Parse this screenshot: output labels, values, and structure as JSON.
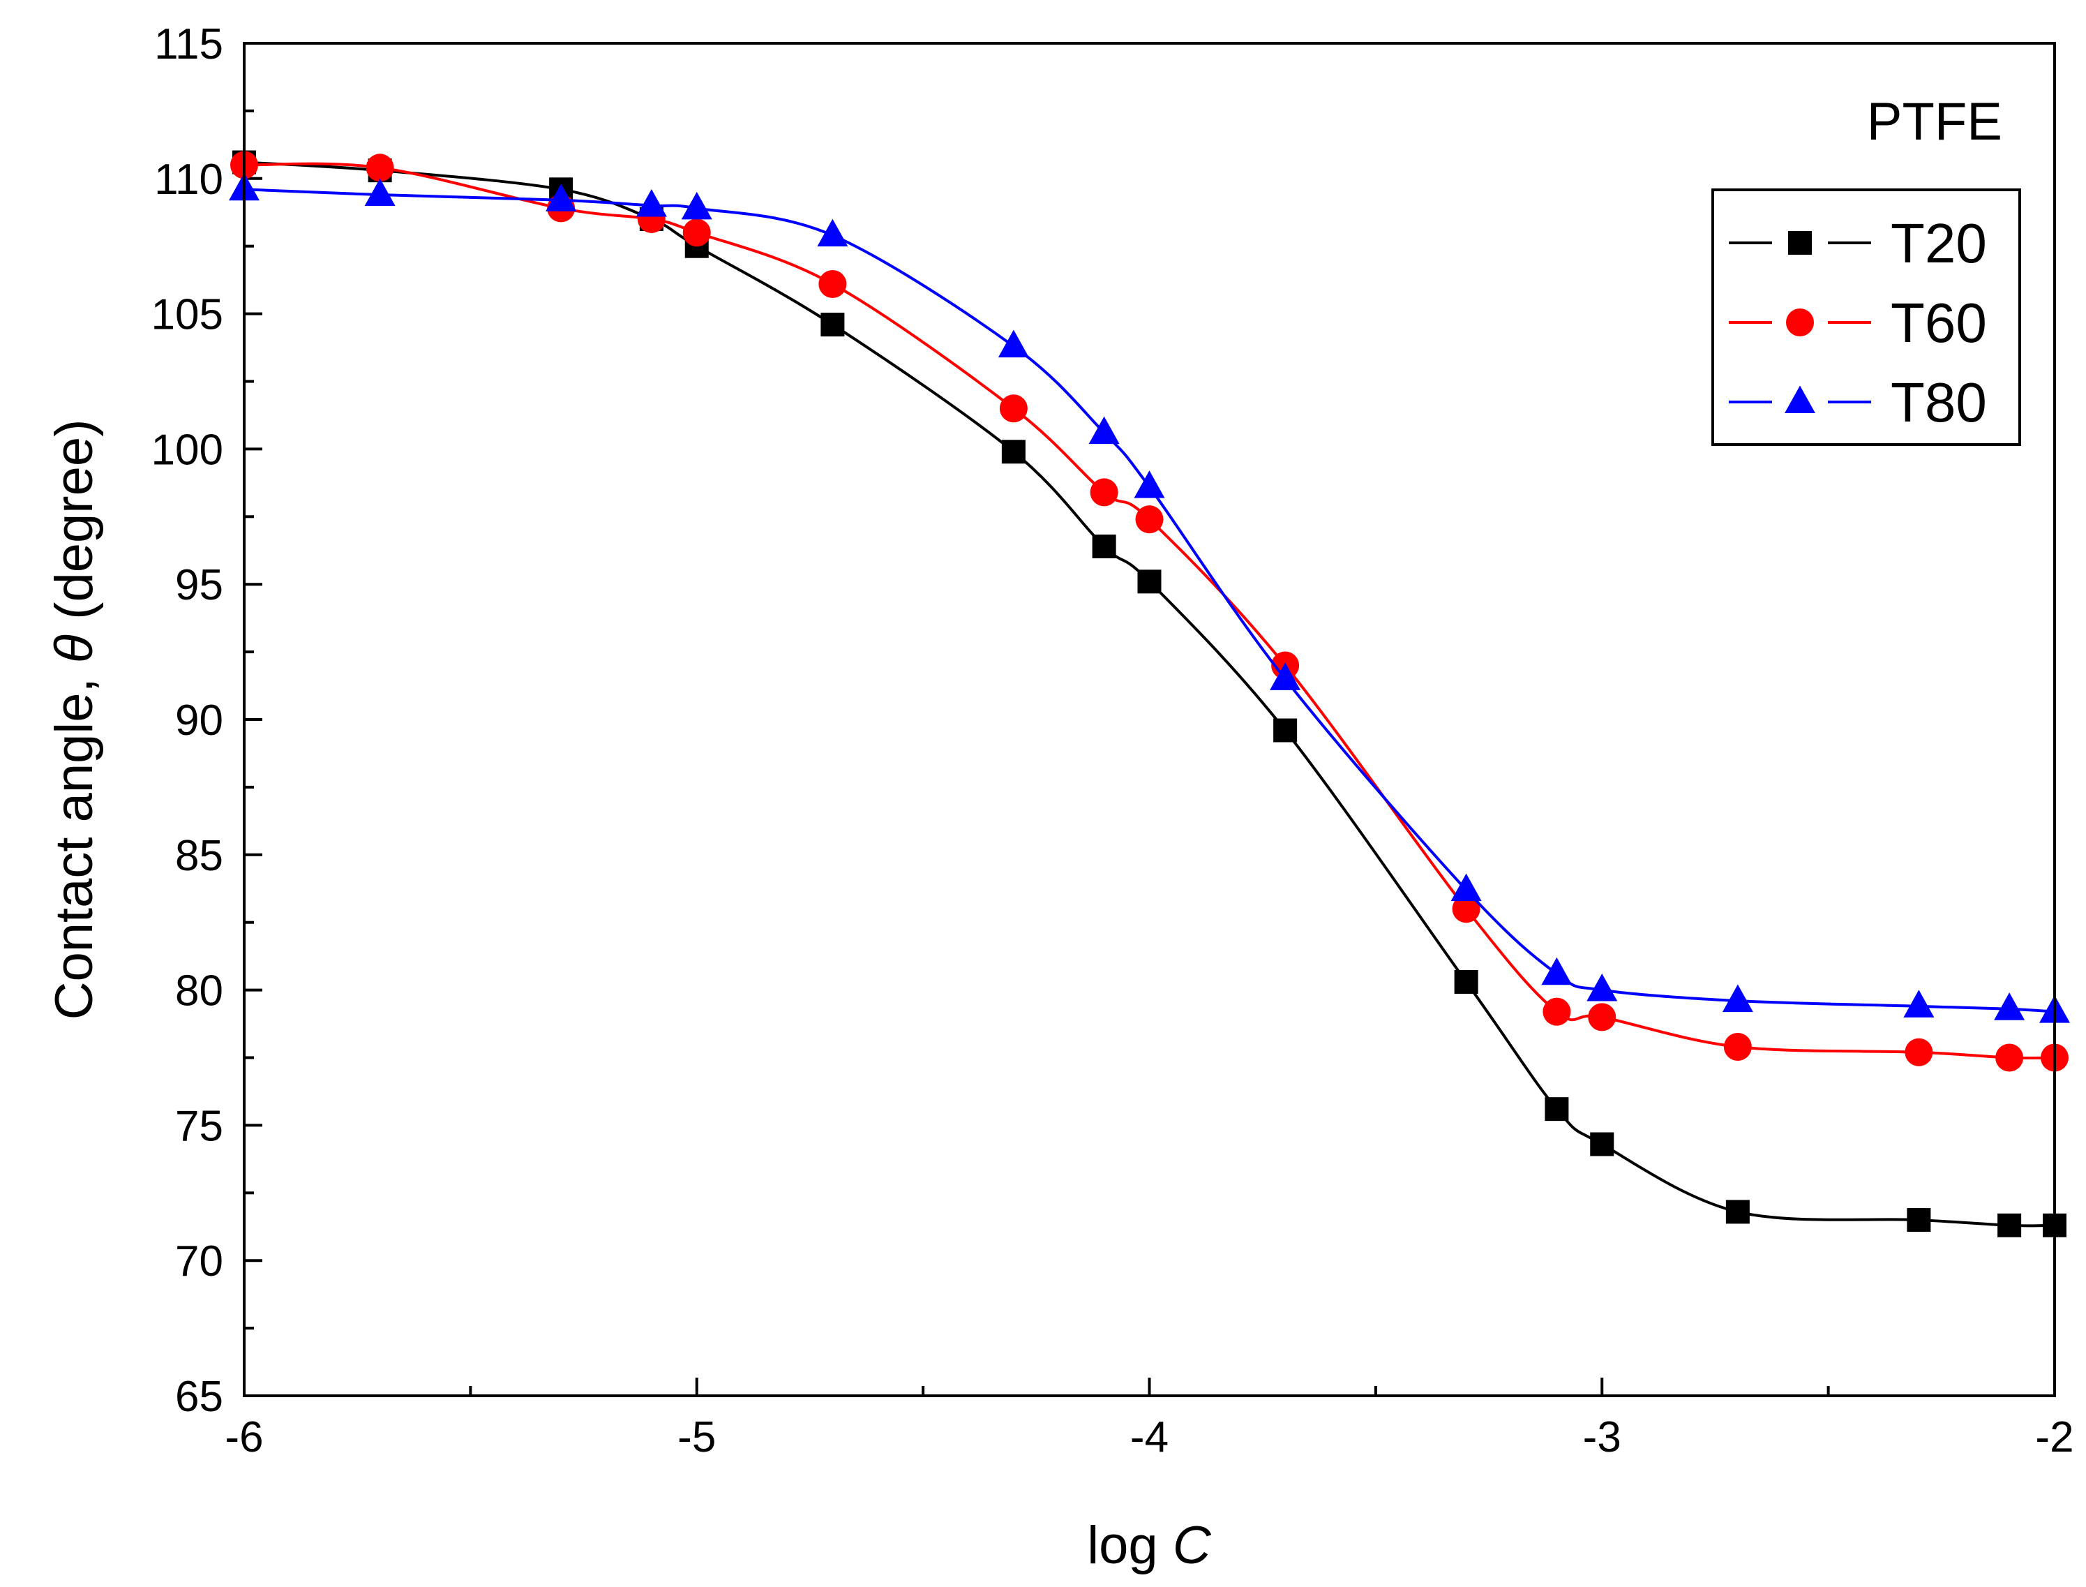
{
  "chart_data": {
    "type": "line",
    "title": "",
    "annotation": "PTFE",
    "xlabel_prefix": "log ",
    "xlabel_var": "C",
    "ylabel_prefix": "Contact angle, ",
    "ylabel_var": "θ",
    "ylabel_suffix": " (degree)",
    "xlim": [
      -6,
      -2
    ],
    "ylim": [
      65,
      115
    ],
    "xticks": [
      -6,
      -5,
      -4,
      -3,
      -2
    ],
    "yticks": [
      65,
      70,
      75,
      80,
      85,
      90,
      95,
      100,
      105,
      110,
      115
    ],
    "x_minor_step": 0.5,
    "y_minor_step": 2.5,
    "legend_position": "top-right",
    "series": [
      {
        "name": "T20",
        "color": "#000000",
        "marker": "square",
        "x": [
          -6,
          -5.7,
          -5.3,
          -5.1,
          -5,
          -4.7,
          -4.3,
          -4.1,
          -4,
          -3.7,
          -3.3,
          -3.1,
          -3,
          -2.7,
          -2.3,
          -2.1,
          -2
        ],
        "y": [
          110.6,
          110.3,
          109.6,
          108.5,
          107.5,
          104.6,
          99.9,
          96.4,
          95.1,
          89.6,
          80.3,
          75.6,
          74.3,
          71.8,
          71.5,
          71.3,
          71.3
        ]
      },
      {
        "name": "T60",
        "color": "#ff0000",
        "marker": "circle",
        "x": [
          -6,
          -5.7,
          -5.3,
          -5.1,
          -5,
          -4.7,
          -4.3,
          -4.1,
          -4,
          -3.7,
          -3.3,
          -3.1,
          -3,
          -2.7,
          -2.3,
          -2.1,
          -2
        ],
        "y": [
          110.5,
          110.4,
          108.9,
          108.5,
          108.0,
          106.1,
          101.5,
          98.4,
          97.4,
          92.0,
          83.0,
          79.2,
          79.0,
          77.9,
          77.7,
          77.5,
          77.5
        ]
      },
      {
        "name": "T80",
        "color": "#0000ff",
        "marker": "triangle",
        "x": [
          -6,
          -5.7,
          -5.3,
          -5.1,
          -5,
          -4.7,
          -4.3,
          -4.1,
          -4,
          -3.7,
          -3.3,
          -3.1,
          -3,
          -2.7,
          -2.3,
          -2.1,
          -2
        ],
        "y": [
          109.6,
          109.4,
          109.2,
          109.0,
          108.9,
          107.9,
          103.8,
          100.6,
          98.6,
          91.5,
          83.7,
          80.6,
          80.0,
          79.6,
          79.4,
          79.3,
          79.2
        ]
      }
    ]
  }
}
